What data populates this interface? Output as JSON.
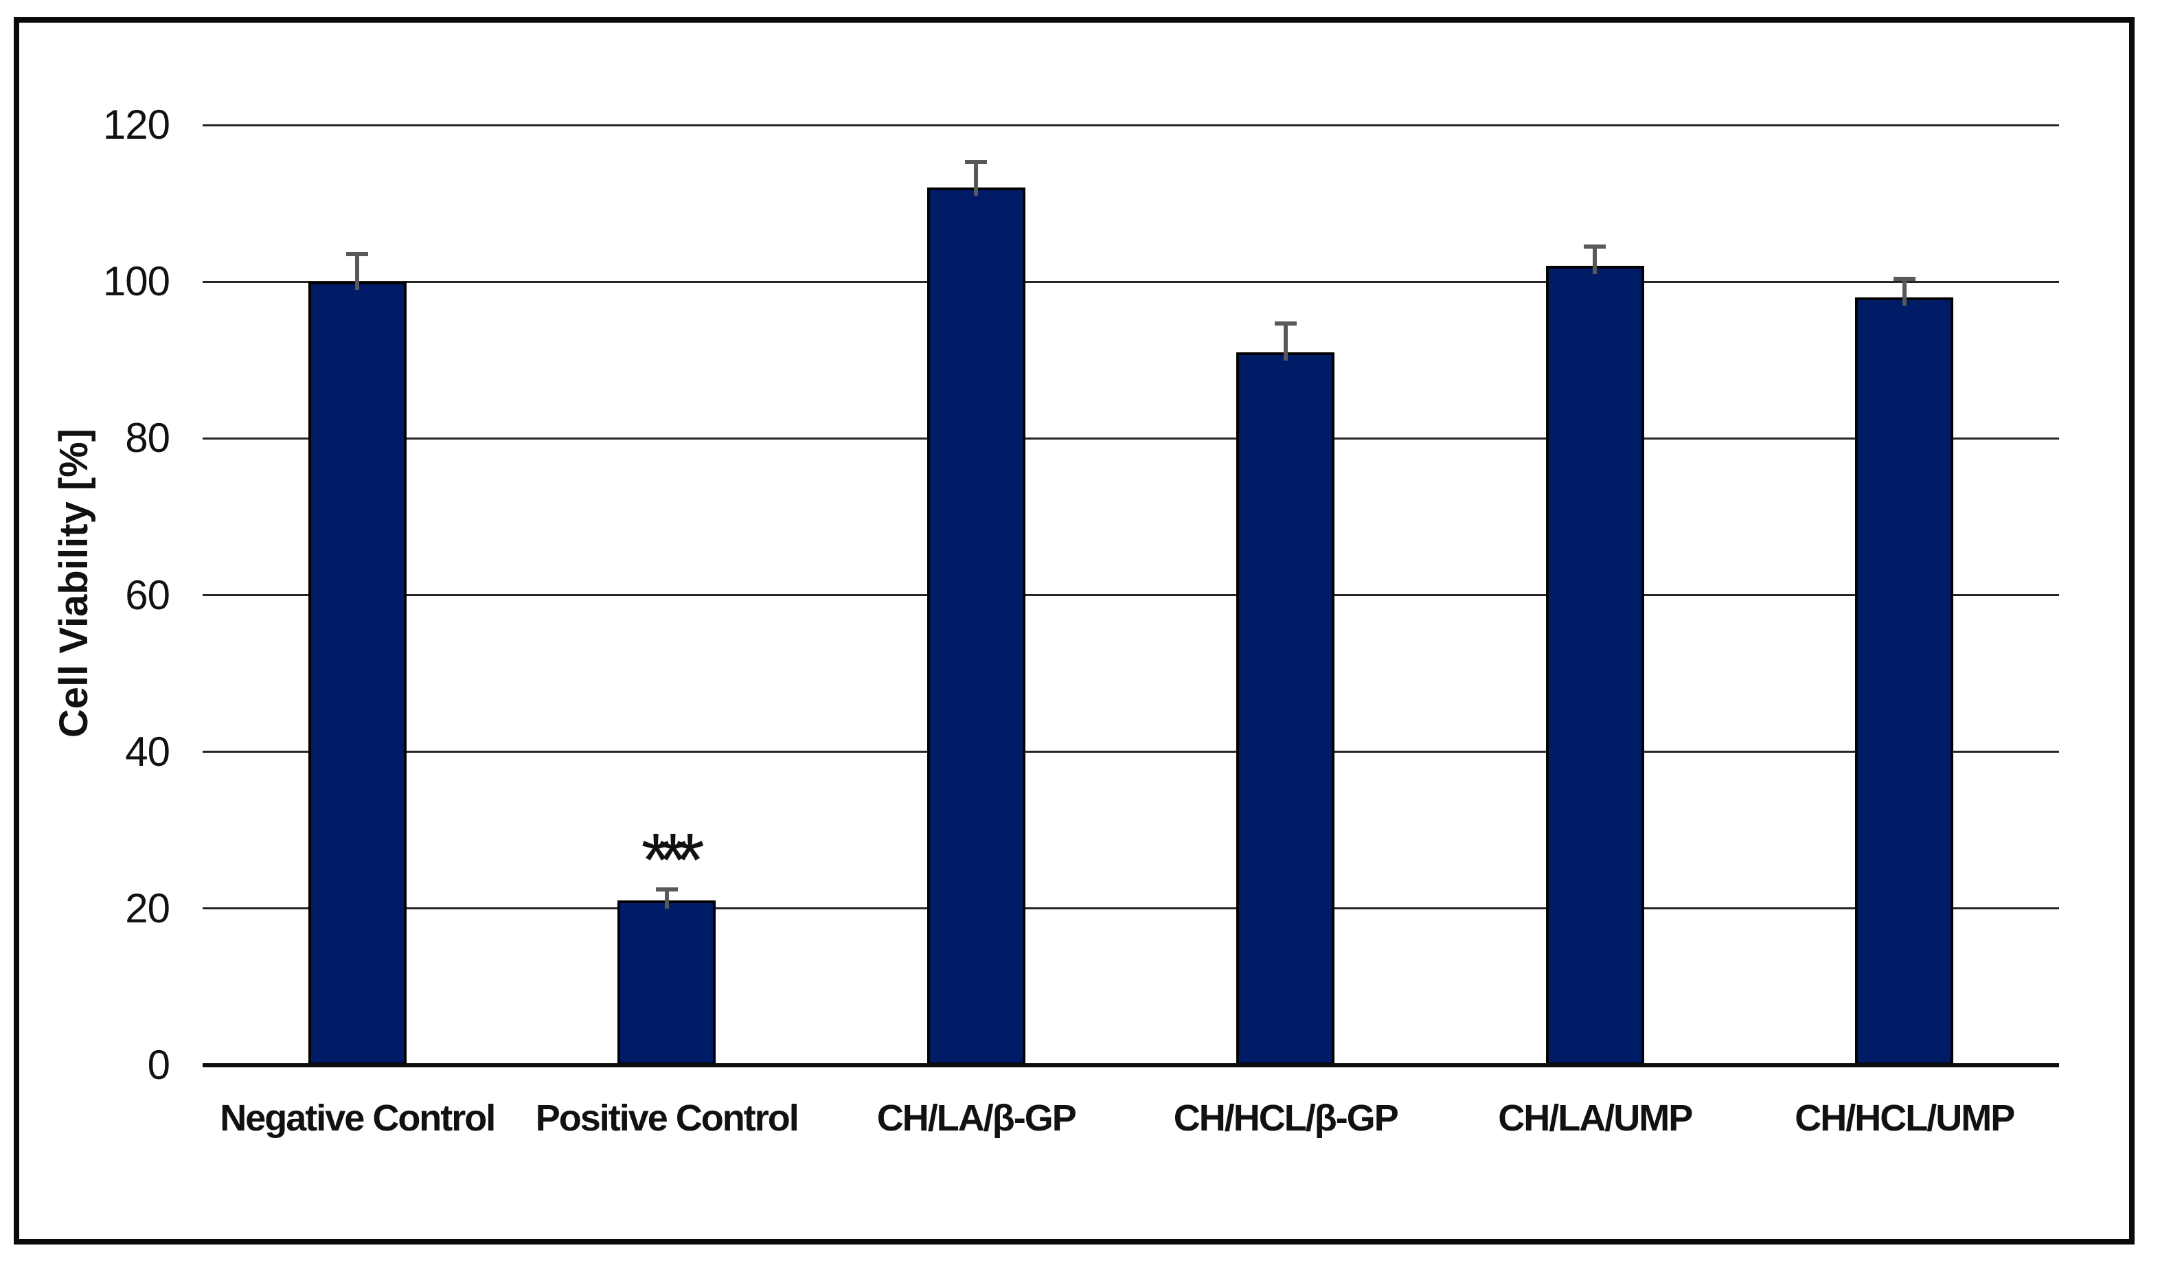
{
  "chart_data": {
    "type": "bar",
    "title": "",
    "ylabel": "Cell Viability [%]",
    "xlabel": "",
    "ylim": [
      0,
      120
    ],
    "yticks": [
      0,
      20,
      40,
      60,
      80,
      100,
      120
    ],
    "grid": "horizontal",
    "legend_position": "none",
    "bar_color": "#011c67",
    "bar_border_color": "#000000",
    "error_bar_color": "#595959",
    "axis_text_color": "#111111",
    "categories": [
      "Negative Control",
      "Positive Control",
      "CH/LA/β-GP",
      "CH/HCL/β-GP",
      "CH/LA/UMP",
      "CH/HCL/UMP"
    ],
    "values": [
      100,
      21,
      112,
      91,
      102,
      98
    ],
    "errors": [
      3.5,
      1.4,
      3.3,
      3.7,
      2.5,
      2.4
    ],
    "annotations": [
      {
        "category_index": 1,
        "text": "***"
      }
    ]
  }
}
